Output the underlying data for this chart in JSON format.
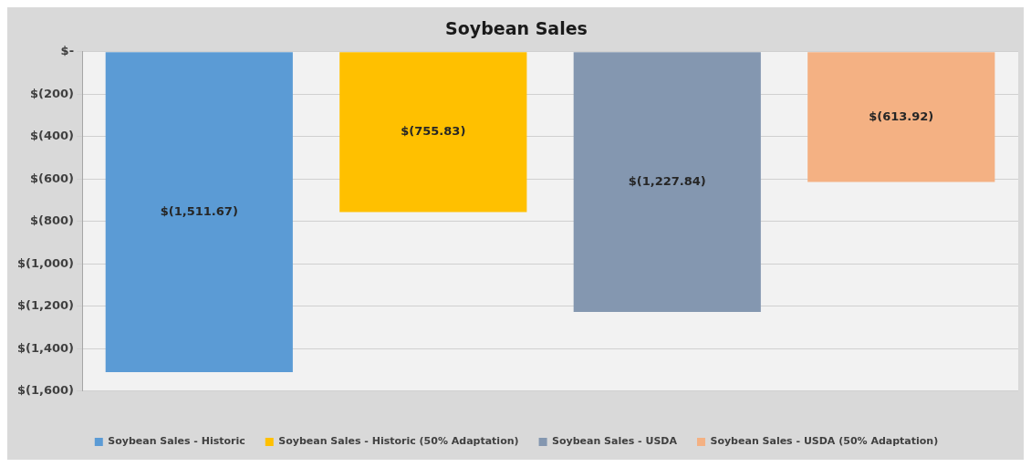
{
  "chart_data": {
    "type": "bar",
    "title": "Soybean Sales",
    "categories": [
      null
    ],
    "series": [
      {
        "name": "Soybean Sales - Historic",
        "color": "#5b9bd5",
        "values": [
          -1511.67
        ],
        "value_labels": [
          "$(1,511.67)"
        ]
      },
      {
        "name": "Soybean Sales - Historic (50% Adaptation)",
        "color": "#ffc000",
        "values": [
          -755.83
        ],
        "value_labels": [
          "$(755.83)"
        ]
      },
      {
        "name": "Soybean Sales - USDA",
        "color": "#8497b0",
        "values": [
          -1227.84
        ],
        "value_labels": [
          "$(1,227.84)"
        ]
      },
      {
        "name": "Soybean Sales - USDA (50% Adaptation)",
        "color": "#f4b183",
        "values": [
          -613.92
        ],
        "value_labels": [
          "$(613.92)"
        ]
      }
    ],
    "ylim": [
      -1600,
      0
    ],
    "yticks": [
      {
        "value": 0,
        "label": "$-"
      },
      {
        "value": -200,
        "label": "$(200)"
      },
      {
        "value": -400,
        "label": "$(400)"
      },
      {
        "value": -600,
        "label": "$(600)"
      },
      {
        "value": -800,
        "label": "$(800)"
      },
      {
        "value": -1000,
        "label": "$(1,000)"
      },
      {
        "value": -1200,
        "label": "$(1,200)"
      },
      {
        "value": -1400,
        "label": "$(1,400)"
      },
      {
        "value": -1600,
        "label": "$(1,600)"
      }
    ],
    "grid": "y",
    "legend": "bottom"
  }
}
